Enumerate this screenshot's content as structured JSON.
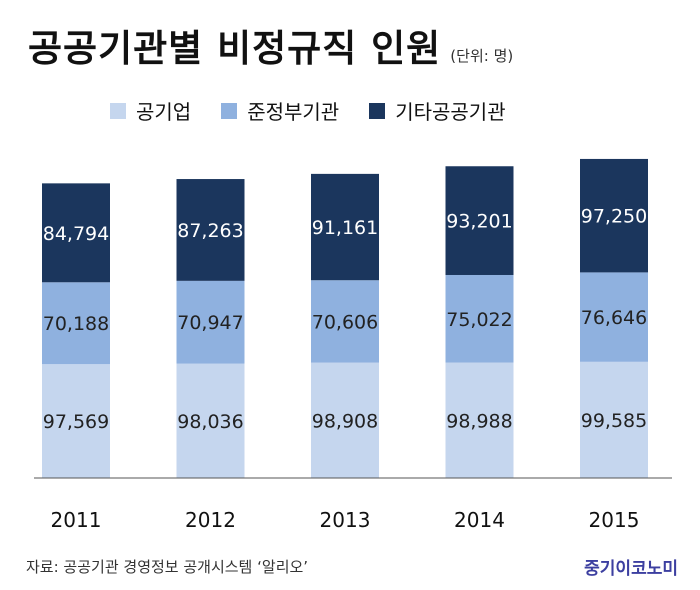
{
  "title": "공공기관별 비정규직 인원",
  "unit": "(단위: 명)",
  "source": "자료: 공공기관 경영정보 공개시스템 ‘알리오’",
  "brand": "중기이코노미",
  "colors": {
    "s0": "#c5d6ee",
    "s1": "#8fb1df",
    "s2": "#1b365d"
  },
  "chart_data": {
    "type": "bar",
    "stacked": true,
    "categories": [
      "2011",
      "2012",
      "2013",
      "2014",
      "2015"
    ],
    "series": [
      {
        "name": "공기업",
        "values": [
          97569,
          98036,
          98908,
          98988,
          99585
        ]
      },
      {
        "name": "준정부기관",
        "values": [
          70188,
          70947,
          70606,
          75022,
          76646
        ]
      },
      {
        "name": "기타공공기관",
        "values": [
          84794,
          87263,
          91161,
          93201,
          97250
        ]
      }
    ],
    "data_labels": [
      [
        "97,569",
        "98,036",
        "98,908",
        "98,988",
        "99,585"
      ],
      [
        "70,188",
        "70,947",
        "70,606",
        "75,022",
        "76,646"
      ],
      [
        "84,794",
        "87,263",
        "91,161",
        "93,201",
        "97,250"
      ]
    ],
    "ylim": [
      0,
      300000
    ],
    "legend": "top",
    "grid": false
  }
}
